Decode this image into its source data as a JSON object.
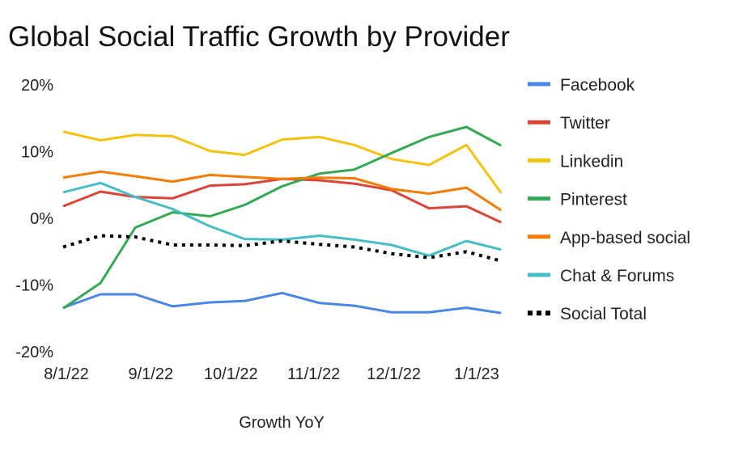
{
  "chart_data": {
    "type": "line",
    "title": "Global Social Traffic Growth by Provider",
    "xlabel": "Growth YoY",
    "ylabel": "",
    "ylim": [
      -20,
      20
    ],
    "y_ticks": [
      "20%",
      "10%",
      "0%",
      "-10%",
      "-20%"
    ],
    "y_tick_values": [
      20,
      10,
      0,
      -10,
      -20
    ],
    "x_ticks": [
      "8/1/22",
      "9/1/22",
      "10/1/22",
      "11/1/22",
      "12/1/22",
      "1/1/23"
    ],
    "x_tick_dates": [
      "2022-08-01",
      "2022-09-01",
      "2022-10-01",
      "2022-11-01",
      "2022-12-01",
      "2023-01-01"
    ],
    "x": [
      "2022-08-01",
      "2022-08-15",
      "2022-08-28",
      "2022-09-11",
      "2022-09-25",
      "2022-10-08",
      "2022-10-22",
      "2022-11-05",
      "2022-11-18",
      "2022-12-02",
      "2022-12-16",
      "2022-12-30",
      "2023-01-12"
    ],
    "grid": false,
    "legend_position": "right",
    "series": [
      {
        "name": "Facebook",
        "color": "#4a86e8",
        "dashed": false,
        "values": [
          -13.4,
          -11.4,
          -11.4,
          -13.2,
          -12.6,
          -12.4,
          -11.2,
          -12.7,
          -13.1,
          -14.1,
          -14.1,
          -13.4,
          -14.2
        ]
      },
      {
        "name": "Twitter",
        "color": "#db4437",
        "dashed": false,
        "values": [
          1.8,
          4.0,
          3.2,
          3.0,
          4.9,
          5.1,
          5.9,
          5.7,
          5.2,
          4.2,
          1.5,
          1.8,
          -0.6
        ]
      },
      {
        "name": "Linkedin",
        "color": "#f4c20d",
        "dashed": false,
        "values": [
          13.0,
          11.7,
          12.5,
          12.3,
          10.1,
          9.5,
          11.8,
          12.2,
          11.0,
          8.9,
          8.0,
          11.0,
          3.8
        ]
      },
      {
        "name": "Pinterest",
        "color": "#34a853",
        "dashed": false,
        "values": [
          -13.5,
          -9.7,
          -1.4,
          0.9,
          0.3,
          2.0,
          4.8,
          6.7,
          7.3,
          9.8,
          12.2,
          13.7,
          10.9
        ]
      },
      {
        "name": "App-based social",
        "color": "#f57c00",
        "dashed": false,
        "values": [
          6.1,
          7.0,
          6.3,
          5.5,
          6.5,
          6.2,
          5.9,
          6.1,
          6.0,
          4.4,
          3.7,
          4.6,
          1.2
        ]
      },
      {
        "name": "Chat & Forums",
        "color": "#46bdc6",
        "dashed": false,
        "values": [
          3.9,
          5.3,
          3.2,
          1.4,
          -1.2,
          -3.1,
          -3.2,
          -2.6,
          -3.2,
          -4.0,
          -5.6,
          -3.4,
          -4.7
        ]
      },
      {
        "name": "Social Total",
        "color": "#000000",
        "dashed": true,
        "values": [
          -4.3,
          -2.6,
          -2.8,
          -4.0,
          -4.0,
          -4.1,
          -3.4,
          -3.9,
          -4.3,
          -5.3,
          -5.9,
          -5.0,
          -6.4
        ]
      }
    ]
  }
}
